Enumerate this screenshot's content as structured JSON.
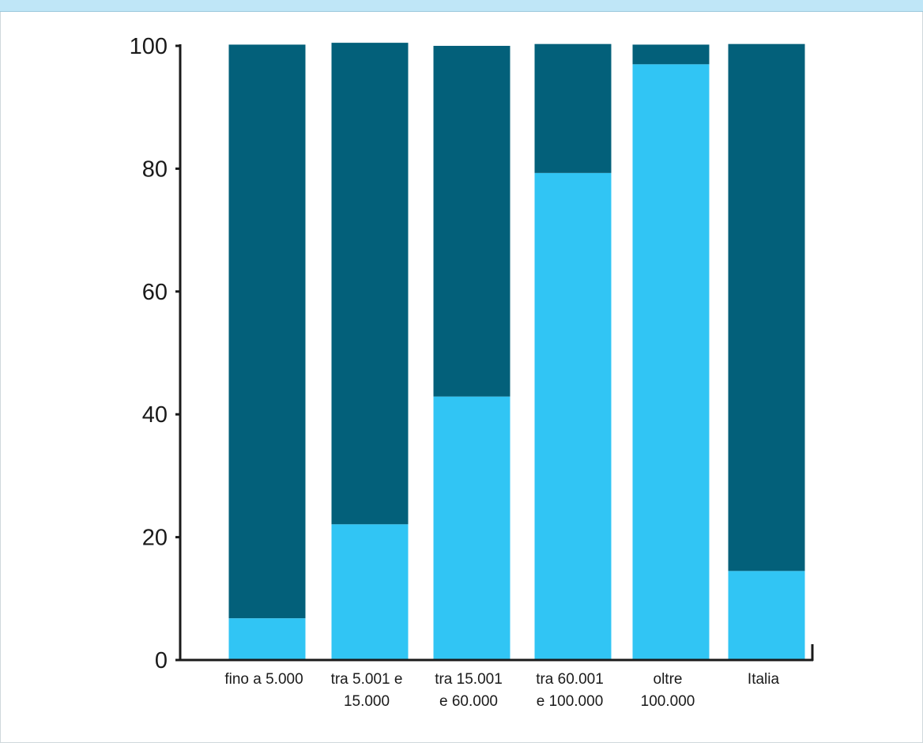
{
  "header": {
    "title": ""
  },
  "colors": {
    "series_dark": "#03607a",
    "series_light": "#31c5f4",
    "axis": "#1a1a1a",
    "header_bg": "#bfe6f7"
  },
  "chart_data": {
    "type": "bar",
    "stacked": true,
    "title": "",
    "xlabel": "",
    "ylabel": "",
    "ylim": [
      0,
      100
    ],
    "yticks": [
      0,
      20,
      40,
      60,
      80,
      100
    ],
    "grid": false,
    "legend": "none",
    "categories": [
      [
        "fino a 5.000"
      ],
      [
        "tra 5.001 e",
        "15.000"
      ],
      [
        "tra 15.001",
        "e 60.000"
      ],
      [
        "tra 60.001",
        "e 100.000"
      ],
      [
        "oltre",
        "100.000"
      ],
      [
        "Italia"
      ]
    ],
    "series": [
      {
        "color": "#31c5f4",
        "values": [
          6.8,
          22.1,
          42.9,
          79.3,
          97.0,
          14.5
        ]
      },
      {
        "color": "#03607a",
        "values": [
          93.4,
          78.4,
          57.1,
          21.0,
          3.2,
          85.8
        ]
      }
    ]
  }
}
